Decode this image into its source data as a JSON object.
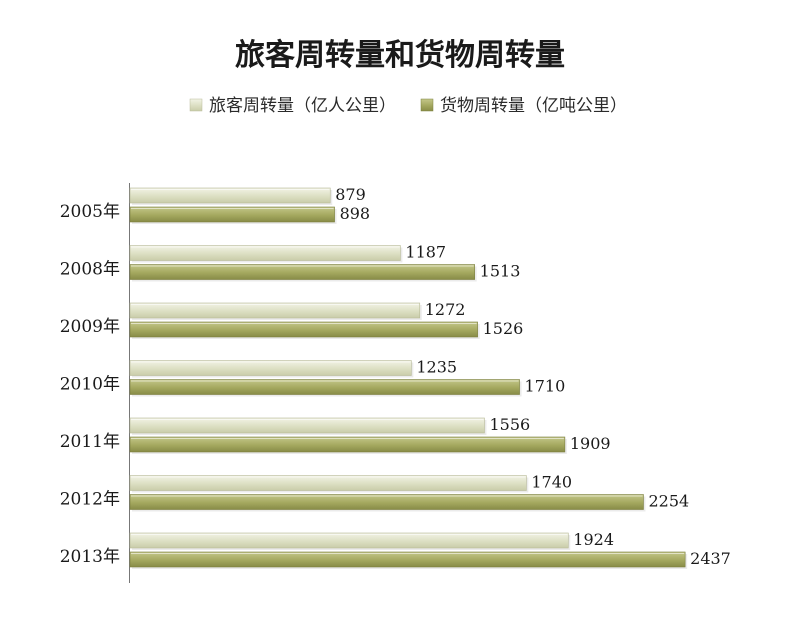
{
  "chart_data": {
    "type": "bar",
    "orientation": "horizontal",
    "title": "旅客周转量和货物周转量",
    "legend_position": "top",
    "grid": false,
    "xlim": [
      0,
      2600
    ],
    "categories": [
      "2005年",
      "2008年",
      "2009年",
      "2010年",
      "2011年",
      "2012年",
      "2013年"
    ],
    "series": [
      {
        "name": "旅客周转量（亿人公里）",
        "color": "#dfe2c8",
        "values": [
          879,
          1187,
          1272,
          1235,
          1556,
          1740,
          1924
        ]
      },
      {
        "name": "货物周转量（亿吨公里）",
        "color": "#a9ad66",
        "values": [
          898,
          1513,
          1526,
          1710,
          1909,
          2254,
          2437
        ]
      }
    ]
  }
}
